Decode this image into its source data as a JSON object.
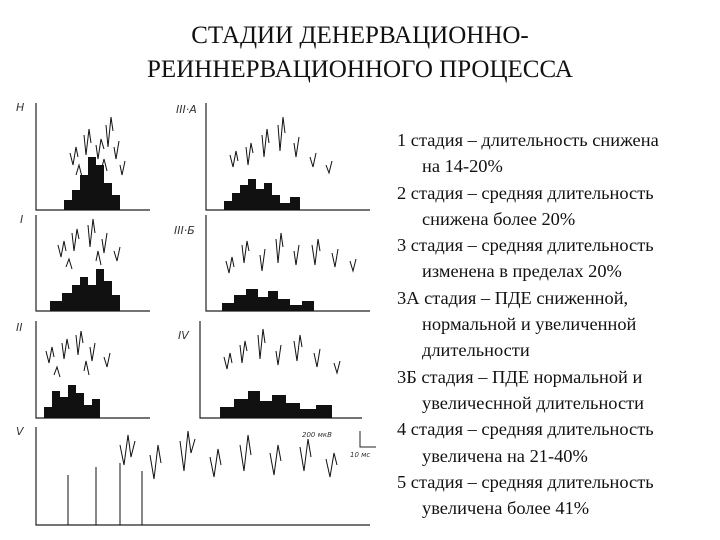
{
  "title": {
    "line1": "СТАДИИ ДЕНЕРВАЦИОННО-",
    "line2": "РЕИННЕРВАЦИОННОГО ПРОЦЕССА"
  },
  "figure": {
    "labels": {
      "n": "Н",
      "i": "I",
      "ii": "II",
      "iii_a": "III·А",
      "iii_b": "III·Б",
      "iv": "IV",
      "v": "V"
    },
    "scale_top": "200 мкВ",
    "scale_right": "10 мс"
  },
  "stages": [
    {
      "first": "1 стадия – длительность снижена",
      "second": "на 14-20%"
    },
    {
      "first": "2 стадия – средняя длительность",
      "second": "снижена более 20%"
    },
    {
      "first": "3 стадия – средняя длительность",
      "second": "изменена в пределах 20%"
    },
    {
      "first": "3А стадия – ПДЕ сниженной,",
      "second": "нормальной и увеличенной"
    },
    {
      "first": "",
      "second": "длительности"
    },
    {
      "first": "3Б стадия – ПДЕ нормальной и",
      "second": "увеличесннoй длительности"
    },
    {
      "first": "4 стадия – средняя длительность",
      "second": "увеличена на 21-40%"
    },
    {
      "first": "5 стадия – средняя длительность",
      "second": "увеличена более 41%"
    }
  ]
}
